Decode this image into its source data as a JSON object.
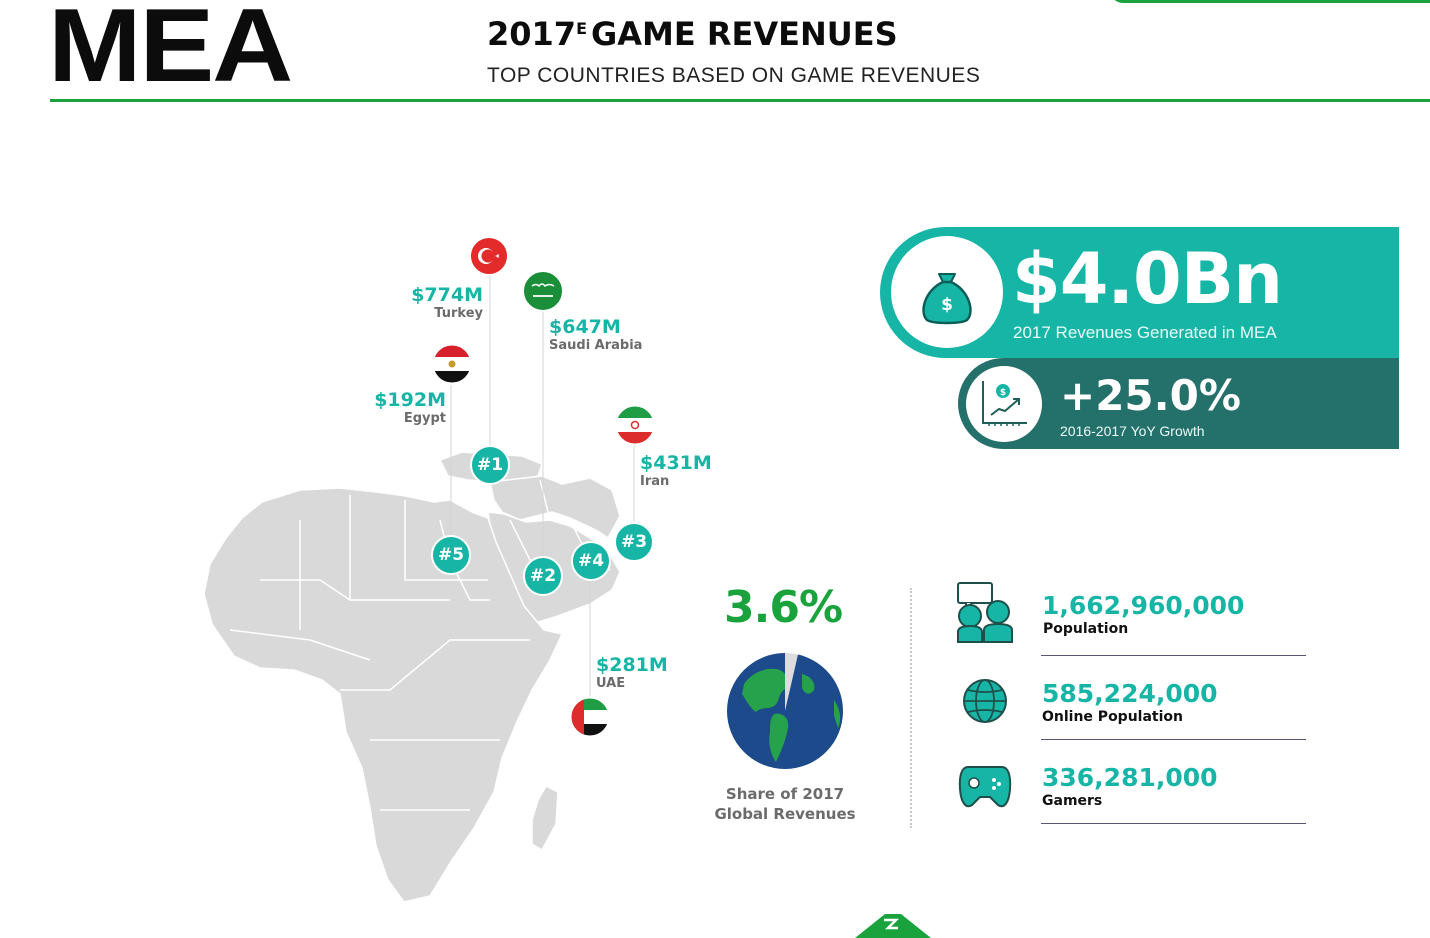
{
  "header": {
    "region": "MEA",
    "title_year": "2017",
    "title_sup": "E",
    "title_rest": "GAME REVENUES",
    "subtitle": "TOP COUNTRIES BASED ON GAME REVENUES"
  },
  "countries": [
    {
      "rank": "#1",
      "amount": "$774M",
      "name": "Turkey",
      "flag": "turkey-flag"
    },
    {
      "rank": "#2",
      "amount": "$647M",
      "name": "Saudi Arabia",
      "flag": "saudi-arabia-flag"
    },
    {
      "rank": "#3",
      "amount": "$431M",
      "name": "Iran",
      "flag": "iran-flag"
    },
    {
      "rank": "#4",
      "amount": "$281M",
      "name": "UAE",
      "flag": "uae-flag"
    },
    {
      "rank": "#5",
      "amount": "$192M",
      "name": "Egypt",
      "flag": "egypt-flag"
    }
  ],
  "revenue": {
    "value": "$4.0Bn",
    "label": "2017 Revenues Generated in MEA",
    "icon": "money-bag-icon"
  },
  "growth": {
    "value": "+25.0%",
    "label": "2016-2017 YoY Growth",
    "icon": "growth-chart-icon"
  },
  "share": {
    "value": "3.6%",
    "fraction": 0.036,
    "label_line1": "Share of 2017",
    "label_line2": "Global Revenues"
  },
  "stats": [
    {
      "value": "1,662,960,000",
      "label": "Population",
      "icon": "people-icon"
    },
    {
      "value": "585,224,000",
      "label": "Online Population",
      "icon": "globe-icon"
    },
    {
      "value": "336,281,000",
      "label": "Gamers",
      "icon": "gamepad-icon"
    }
  ],
  "colors": {
    "teal": "#17b5a6",
    "dark_teal": "#24706a",
    "green": "#1aa33c",
    "map_gray": "#d9d9d9"
  }
}
